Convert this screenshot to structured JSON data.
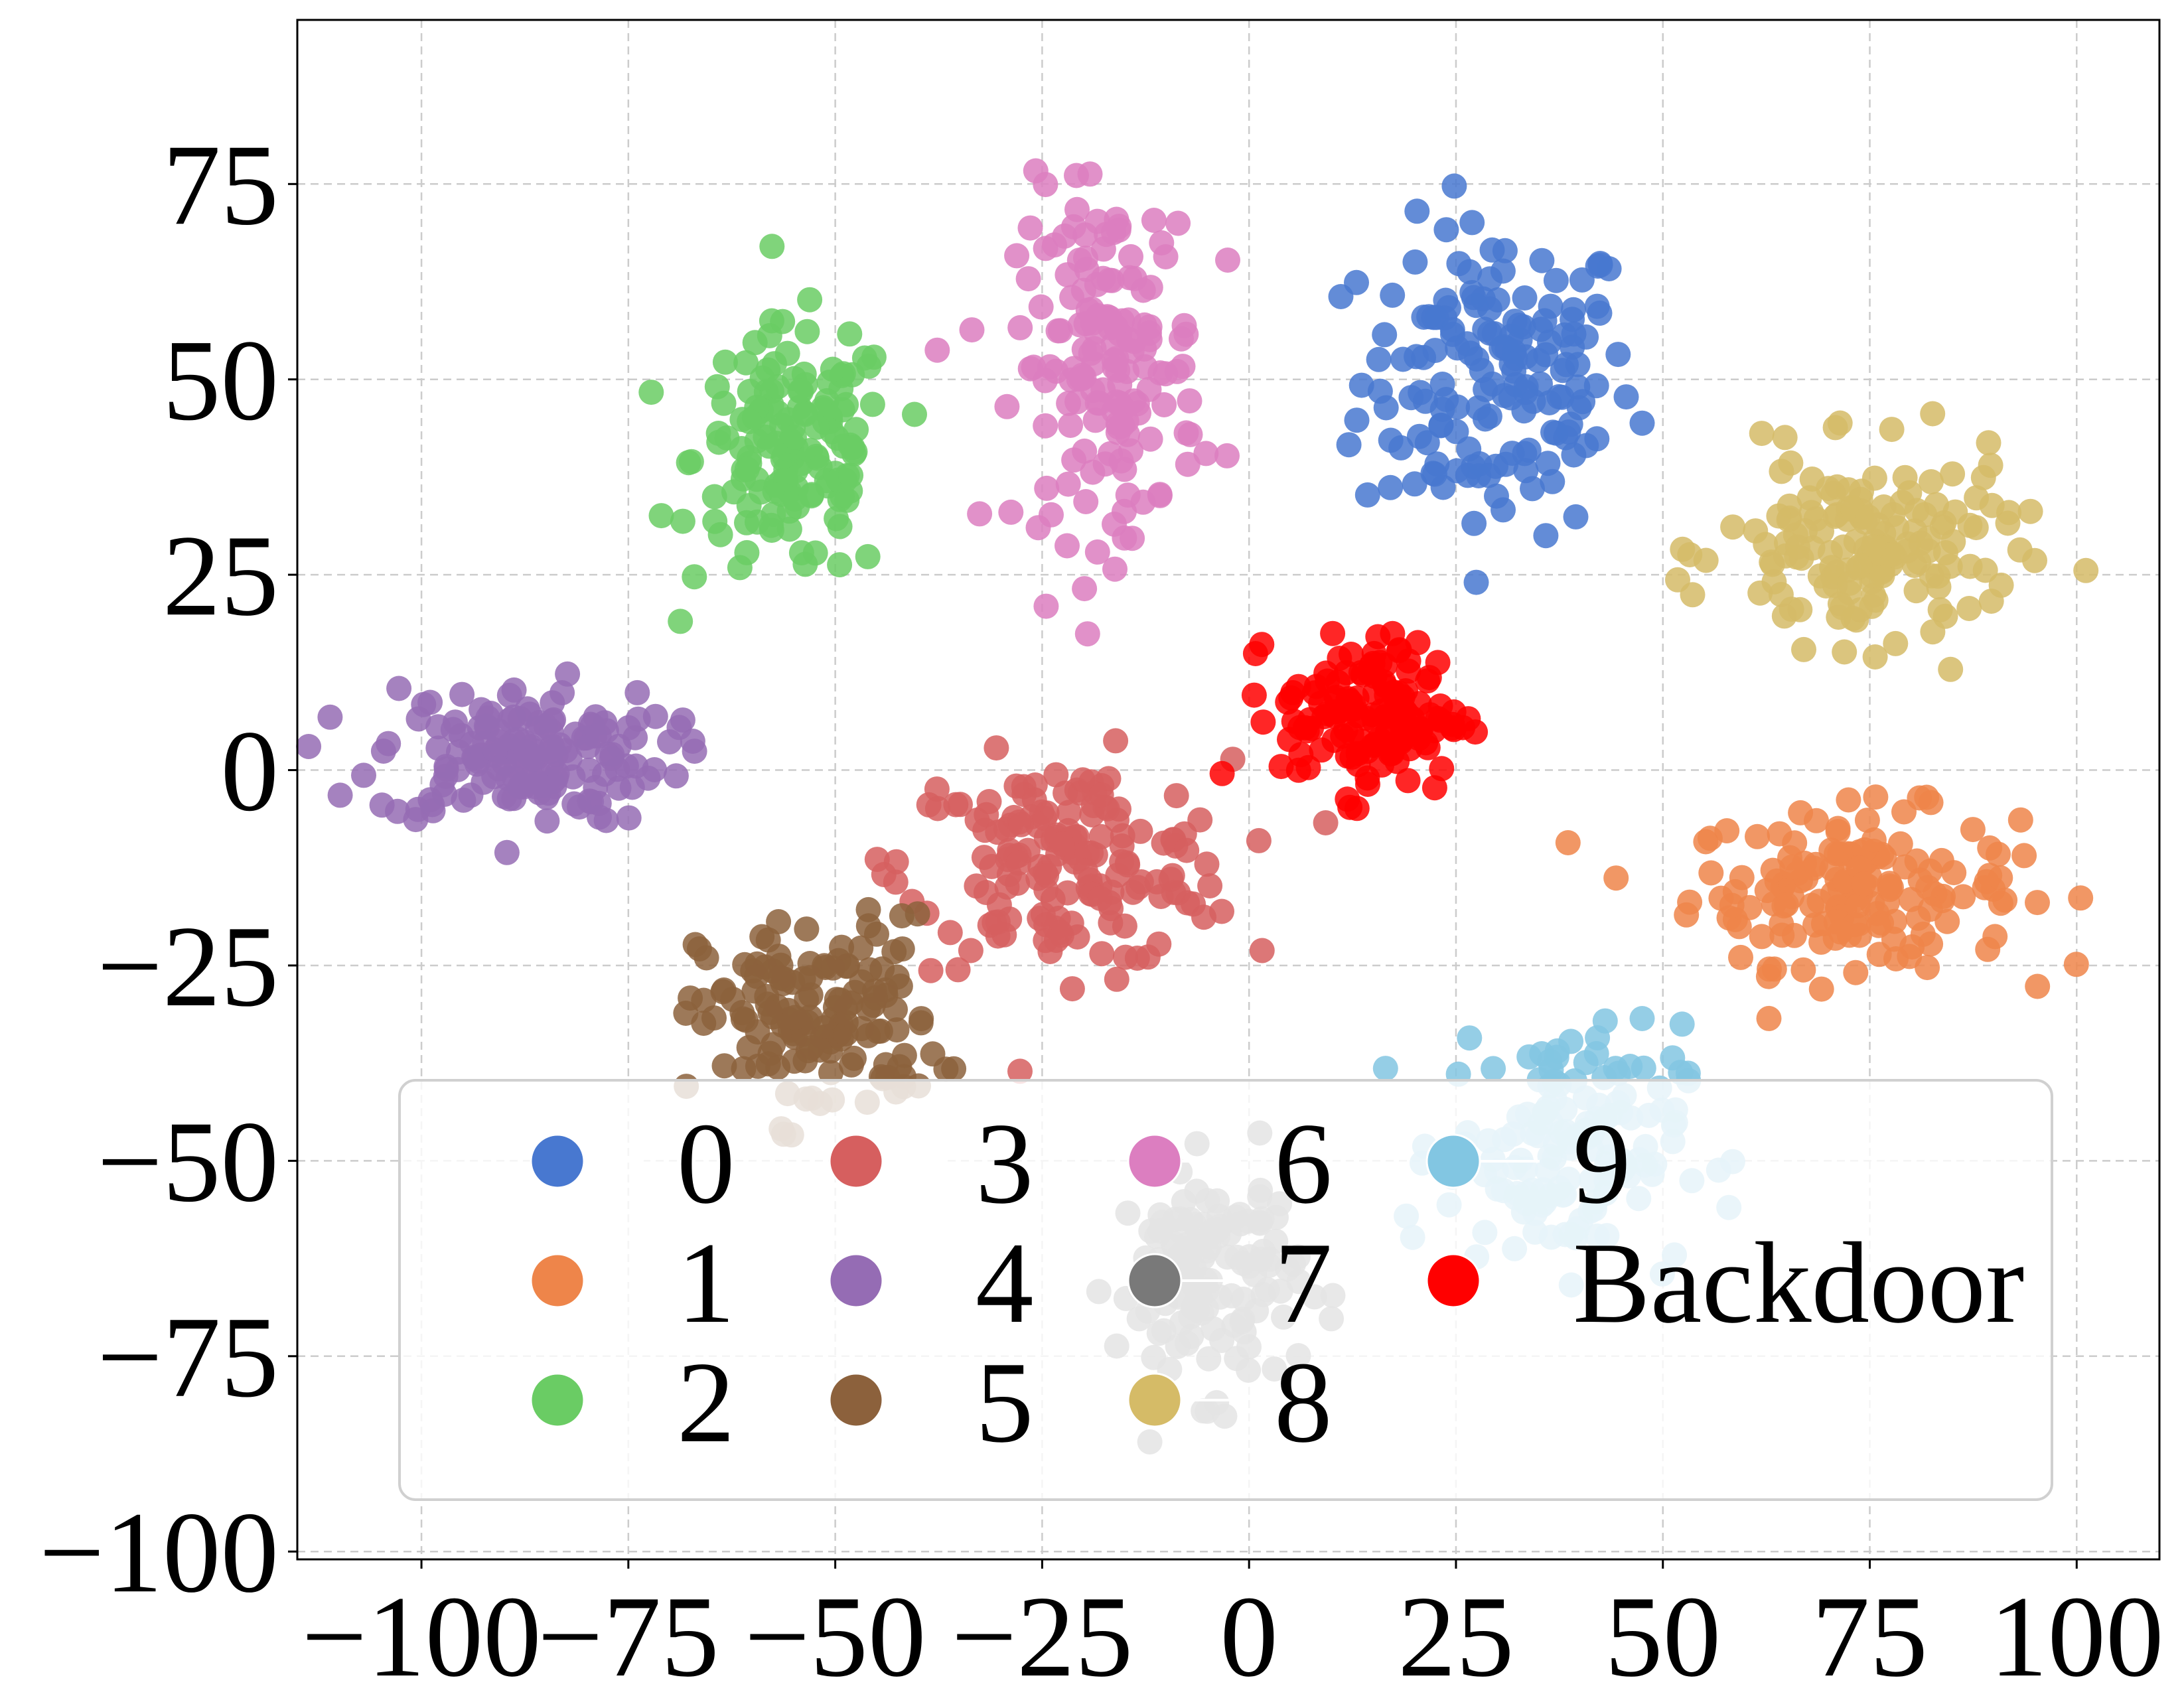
{
  "chart_data": {
    "type": "scatter",
    "title": "",
    "xlabel": "",
    "ylabel": "",
    "xlim": [
      -115,
      110
    ],
    "ylim": [
      -101,
      96
    ],
    "xticks": [
      -100,
      -75,
      -50,
      -25,
      0,
      25,
      50,
      75,
      100
    ],
    "yticks": [
      -100,
      -75,
      -50,
      -25,
      0,
      25,
      50,
      75
    ],
    "xtick_labels": [
      "−100",
      "−75",
      "−50",
      "−25",
      "0",
      "25",
      "50",
      "75",
      "100"
    ],
    "ytick_labels": [
      "−100",
      "−75",
      "−50",
      "−25",
      "0",
      "25",
      "50",
      "75"
    ],
    "grid": true,
    "legend": {
      "placement": "lower center",
      "columns": 4,
      "entries": [
        "0",
        "1",
        "2",
        "3",
        "4",
        "5",
        "6",
        "7",
        "8",
        "9",
        "Backdoor"
      ]
    },
    "series": [
      {
        "name": "0",
        "color": "#4878d0",
        "center": [
          30,
          50
        ],
        "spread": [
          15,
          18
        ],
        "n": 160
      },
      {
        "name": "1",
        "color": "#ee854a",
        "center": [
          73,
          -15
        ],
        "spread": [
          18,
          9
        ],
        "n": 160
      },
      {
        "name": "2",
        "color": "#6acc64",
        "center": [
          -55,
          40
        ],
        "spread": [
          11,
          15
        ],
        "n": 150
      },
      {
        "name": "3",
        "color": "#d65f5f",
        "center": [
          -22,
          -12
        ],
        "spread": [
          18,
          12
        ],
        "n": 170
      },
      {
        "name": "4",
        "color": "#956cb4",
        "center": [
          -88,
          2
        ],
        "spread": [
          16,
          8
        ],
        "n": 160
      },
      {
        "name": "5",
        "color": "#8c613c",
        "center": [
          -52,
          -32
        ],
        "spread": [
          13,
          12
        ],
        "n": 150
      },
      {
        "name": "6",
        "color": "#dc7ec0",
        "center": [
          -17,
          52
        ],
        "spread": [
          10,
          20
        ],
        "n": 160
      },
      {
        "name": "7",
        "color": "#797979",
        "center": [
          -5,
          -65
        ],
        "spread": [
          10,
          13
        ],
        "n": 140
      },
      {
        "name": "8",
        "color": "#d5bb67",
        "center": [
          75,
          28
        ],
        "spread": [
          16,
          11
        ],
        "n": 160
      },
      {
        "name": "9",
        "color": "#82c6e2",
        "center": [
          38,
          -48
        ],
        "spread": [
          13,
          14
        ],
        "n": 150
      },
      {
        "name": "Backdoor",
        "color": "#ff0000",
        "center": [
          15,
          7
        ],
        "spread": [
          10,
          9
        ],
        "n": 140
      }
    ]
  }
}
